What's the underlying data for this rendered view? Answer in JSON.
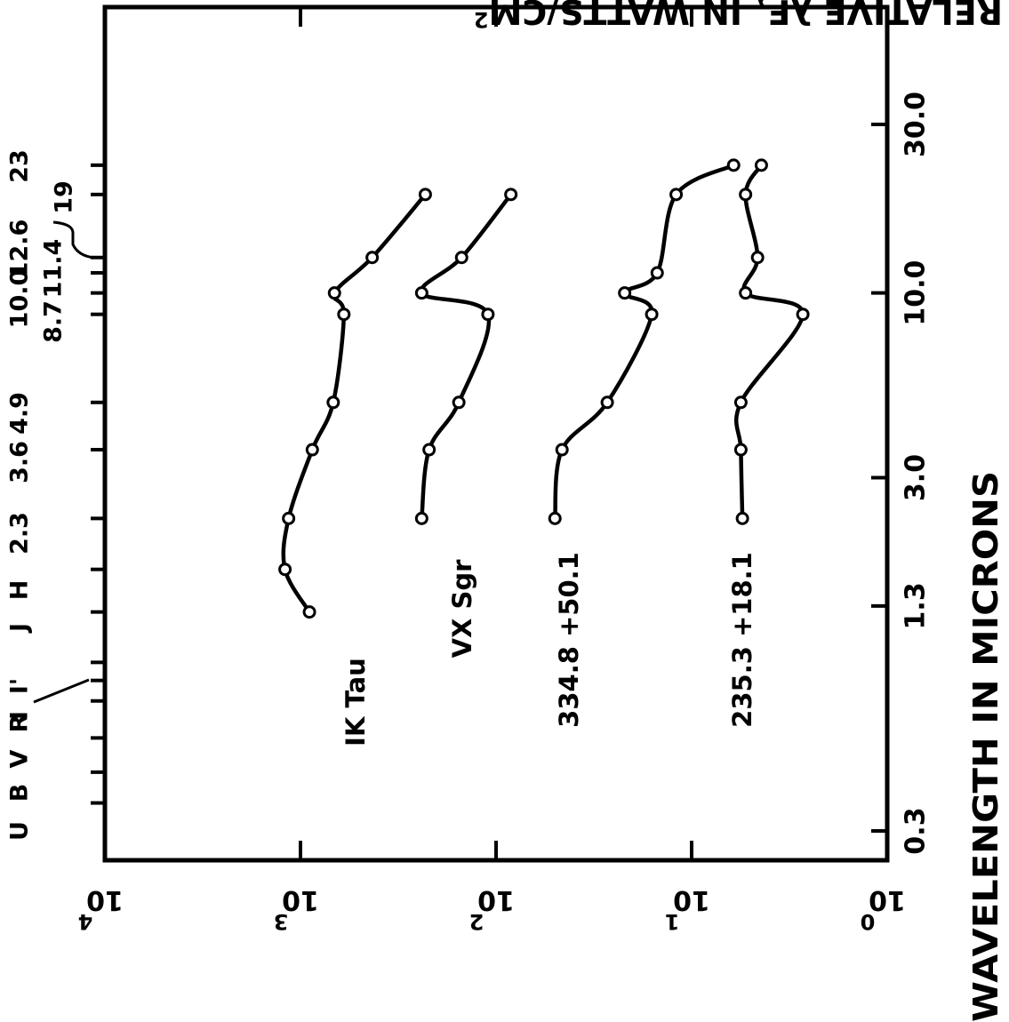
{
  "chart_data": {
    "type": "line",
    "x_label": "WAVELENGTH IN MICRONS",
    "y_label_main": "RELATIVE λF",
    "y_label_sub": "λ",
    "y_label_rest": " IN WATTS/CM",
    "y_label_sup": "2",
    "x_scale": "log",
    "y_scale": "log",
    "xlim": [
      0.3,
      70
    ],
    "ylim": [
      1,
      10000
    ],
    "x_ticks": [
      {
        "value": 0.3,
        "label": "0.3"
      },
      {
        "value": 1.3,
        "label": "1.3"
      },
      {
        "value": 3.0,
        "label": "3.0"
      },
      {
        "value": 10.0,
        "label": "10.0"
      },
      {
        "value": 30.0,
        "label": "30.0"
      }
    ],
    "y_ticks": [
      {
        "value": 1,
        "base": "10",
        "exp": "0"
      },
      {
        "value": 10,
        "base": "10",
        "exp": "1"
      },
      {
        "value": 100,
        "base": "10",
        "exp": "2"
      },
      {
        "value": 1000,
        "base": "10",
        "exp": "3"
      },
      {
        "value": 10000,
        "base": "10",
        "exp": "4"
      }
    ],
    "bands": [
      {
        "label": "U",
        "value": 0.36
      },
      {
        "label": "B",
        "value": 0.44
      },
      {
        "label": "V",
        "value": 0.55
      },
      {
        "label": "R",
        "value": 0.7
      },
      {
        "label": "I'",
        "value": 0.8
      },
      {
        "label": "I",
        "value": 0.9
      },
      {
        "label": "J",
        "value": 1.25
      },
      {
        "label": "H",
        "value": 1.65
      },
      {
        "label": "2.3",
        "value": 2.3
      },
      {
        "label": "3.6",
        "value": 3.6
      },
      {
        "label": "4.9",
        "value": 4.9
      },
      {
        "label": "8.7",
        "value": 8.7
      },
      {
        "label": "10.0",
        "value": 10.0
      },
      {
        "label": "11.4",
        "value": 11.4
      },
      {
        "label": "12.6",
        "value": 12.6
      },
      {
        "label": "19",
        "value": 19
      },
      {
        "label": "23",
        "value": 23
      }
    ],
    "series": [
      {
        "name": "IK Tau",
        "x": [
          1.25,
          1.65,
          2.3,
          3.6,
          4.9,
          8.7,
          10.0,
          12.6,
          19
        ],
        "y": [
          900,
          1200,
          1150,
          870,
          680,
          600,
          670,
          430,
          230
        ]
      },
      {
        "name": "VX Sgr",
        "x": [
          2.3,
          3.6,
          4.9,
          8.7,
          10.0,
          12.6,
          19
        ],
        "y": [
          240,
          220,
          155,
          110,
          240,
          150,
          84
        ]
      },
      {
        "name": "334.8 +50.1",
        "x": [
          2.3,
          3.6,
          4.9,
          8.7,
          10.0,
          11.4,
          19,
          23
        ],
        "y": [
          50,
          46,
          27,
          16,
          22,
          15,
          12,
          6.1
        ]
      },
      {
        "name": "235.3 +18.1",
        "x": [
          2.3,
          3.6,
          4.9,
          8.7,
          10.0,
          12.6,
          19,
          23
        ],
        "y": [
          5.5,
          5.6,
          5.6,
          2.7,
          5.3,
          4.6,
          5.3,
          4.4
        ]
      }
    ]
  }
}
